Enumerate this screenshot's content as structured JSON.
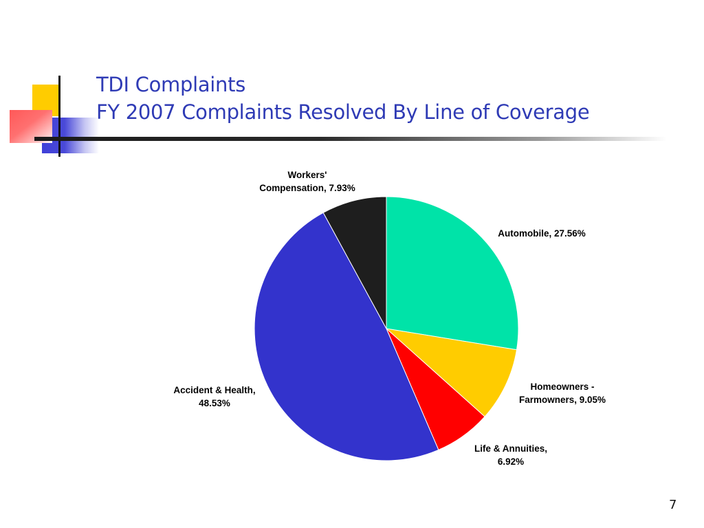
{
  "slide": {
    "title_line1": "TDI Complaints",
    "title_line2": "FY 2007 Complaints Resolved By Line of Coverage",
    "page_number": "7"
  },
  "colors": {
    "title": "#2f3bb5",
    "automobile": "#00e3a8",
    "homeowners": "#ffcc00",
    "life": "#ff0000",
    "accident": "#3333cc",
    "workers": "#1e1e1e"
  },
  "chart_data": {
    "type": "pie",
    "title": "",
    "start": "12 o'clock",
    "direction": "clockwise",
    "legend": "none",
    "slices": [
      {
        "key": "automobile",
        "label_lines": [
          "Automobile, 27.56%"
        ],
        "value": 27.56,
        "color": "#00e3a8"
      },
      {
        "key": "homeowners",
        "label_lines": [
          "Homeowners -",
          "Farmowners, 9.05%"
        ],
        "value": 9.05,
        "color": "#ffcc00"
      },
      {
        "key": "life",
        "label_lines": [
          "Life & Annuities,",
          "6.92%"
        ],
        "value": 6.92,
        "color": "#ff0000"
      },
      {
        "key": "accident",
        "label_lines": [
          "Accident & Health,",
          "48.53%"
        ],
        "value": 48.53,
        "color": "#3333cc"
      },
      {
        "key": "workers",
        "label_lines": [
          "Workers'",
          "Compensation, 7.93%"
        ],
        "value": 7.93,
        "color": "#1e1e1e"
      }
    ]
  }
}
